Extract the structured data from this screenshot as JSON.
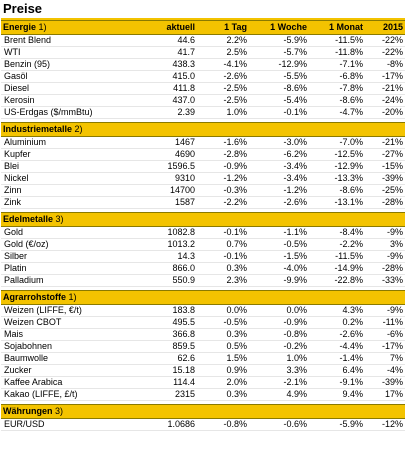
{
  "page_title": "Preise",
  "columns": [
    "aktuell",
    "1 Tag",
    "1 Woche",
    "1 Monat",
    "2015"
  ],
  "sections": [
    {
      "name": "Energie",
      "num": "1)",
      "rows": [
        {
          "label": "Brent Blend",
          "values": [
            "44.6",
            "2.2%",
            "-5.9%",
            "-11.5%",
            "-22%"
          ]
        },
        {
          "label": "WTI",
          "values": [
            "41.7",
            "2.5%",
            "-5.7%",
            "-11.8%",
            "-22%"
          ]
        },
        {
          "label": "Benzin (95)",
          "values": [
            "438.3",
            "-4.1%",
            "-12.9%",
            "-7.1%",
            "-8%"
          ]
        },
        {
          "label": "Gasöl",
          "values": [
            "415.0",
            "-2.6%",
            "-5.5%",
            "-6.8%",
            "-17%"
          ]
        },
        {
          "label": "Diesel",
          "values": [
            "411.8",
            "-2.5%",
            "-8.6%",
            "-7.8%",
            "-21%"
          ]
        },
        {
          "label": "Kerosin",
          "values": [
            "437.0",
            "-2.5%",
            "-5.4%",
            "-8.6%",
            "-24%"
          ]
        },
        {
          "label": "US-Erdgas ($/mmBtu)",
          "values": [
            "2.39",
            "1.0%",
            "-0.1%",
            "-4.7%",
            "-20%"
          ]
        }
      ]
    },
    {
      "name": "Industriemetalle",
      "num": "2)",
      "rows": [
        {
          "label": "Aluminium",
          "values": [
            "1467",
            "-1.6%",
            "-3.0%",
            "-7.0%",
            "-21%"
          ]
        },
        {
          "label": "Kupfer",
          "values": [
            "4690",
            "-2.8%",
            "-6.2%",
            "-12.5%",
            "-27%"
          ]
        },
        {
          "label": "Blei",
          "values": [
            "1596.5",
            "-0.9%",
            "-3.4%",
            "-12.9%",
            "-15%"
          ]
        },
        {
          "label": "Nickel",
          "values": [
            "9310",
            "-1.2%",
            "-3.4%",
            "-13.3%",
            "-39%"
          ]
        },
        {
          "label": "Zinn",
          "values": [
            "14700",
            "-0.3%",
            "-1.2%",
            "-8.6%",
            "-25%"
          ]
        },
        {
          "label": "Zink",
          "values": [
            "1587",
            "-2.2%",
            "-2.6%",
            "-13.1%",
            "-28%"
          ]
        }
      ]
    },
    {
      "name": "Edelmetalle",
      "num": "3)",
      "rows": [
        {
          "label": "Gold",
          "values": [
            "1082.8",
            "-0.1%",
            "-1.1%",
            "-8.4%",
            "-9%"
          ]
        },
        {
          "label": "Gold (€/oz)",
          "values": [
            "1013.2",
            "0.7%",
            "-0.5%",
            "-2.2%",
            "3%"
          ]
        },
        {
          "label": "Silber",
          "values": [
            "14.3",
            "-0.1%",
            "-1.5%",
            "-11.5%",
            "-9%"
          ]
        },
        {
          "label": "Platin",
          "values": [
            "866.0",
            "0.3%",
            "-4.0%",
            "-14.9%",
            "-28%"
          ]
        },
        {
          "label": "Palladium",
          "values": [
            "550.9",
            "2.3%",
            "-9.9%",
            "-22.8%",
            "-33%"
          ]
        }
      ]
    },
    {
      "name": "Agrarrohstoffe",
      "num": "1)",
      "rows": [
        {
          "label": "Weizen (LIFFE, €/t)",
          "values": [
            "183.8",
            "0.0%",
            "0.0%",
            "4.3%",
            "-9%"
          ]
        },
        {
          "label": "Weizen CBOT",
          "values": [
            "495.5",
            "-0.5%",
            "-0.9%",
            "0.2%",
            "-11%"
          ]
        },
        {
          "label": "Mais",
          "values": [
            "366.8",
            "0.3%",
            "-0.8%",
            "-2.6%",
            "-6%"
          ]
        },
        {
          "label": "Sojabohnen",
          "values": [
            "859.5",
            "0.5%",
            "-0.2%",
            "-4.4%",
            "-17%"
          ]
        },
        {
          "label": "Baumwolle",
          "values": [
            "62.6",
            "1.5%",
            "1.0%",
            "-1.4%",
            "7%"
          ]
        },
        {
          "label": "Zucker",
          "values": [
            "15.18",
            "0.9%",
            "3.3%",
            "6.4%",
            "-4%"
          ]
        },
        {
          "label": "Kaffee Arabica",
          "values": [
            "114.4",
            "2.0%",
            "-2.1%",
            "-9.1%",
            "-39%"
          ]
        },
        {
          "label": "Kakao (LIFFE, £/t)",
          "values": [
            "2315",
            "0.3%",
            "4.9%",
            "9.4%",
            "17%"
          ]
        }
      ]
    },
    {
      "name": "Währungen",
      "num": "3)",
      "rows": [
        {
          "label": "EUR/USD",
          "values": [
            "1.0686",
            "-0.8%",
            "-0.6%",
            "-5.9%",
            "-12%"
          ]
        }
      ]
    }
  ]
}
